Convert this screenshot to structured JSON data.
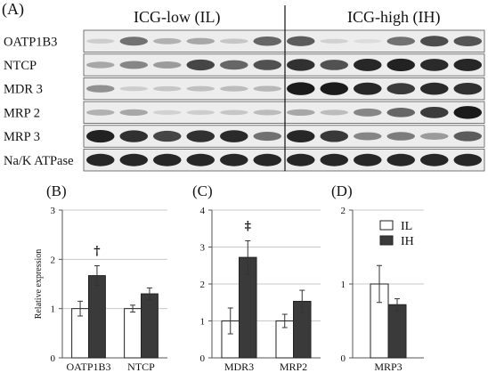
{
  "panels": {
    "a_label": "(A)",
    "group_low": "ICG-low (IL)",
    "group_high": "ICG-high (IH)",
    "blot_rows": [
      {
        "label": "OATP1B3",
        "band_intensity": [
          0.12,
          0.55,
          0.25,
          0.3,
          0.15,
          0.6,
          0.65,
          0.1,
          0.05,
          0.55,
          0.72,
          0.68
        ]
      },
      {
        "label": "NTCP",
        "band_intensity": [
          0.3,
          0.45,
          0.35,
          0.75,
          0.6,
          0.7,
          0.85,
          0.7,
          0.9,
          0.92,
          0.88,
          0.9
        ]
      },
      {
        "label": "MDR 3",
        "band_intensity": [
          0.4,
          0.12,
          0.15,
          0.18,
          0.2,
          0.22,
          0.95,
          0.95,
          0.9,
          0.8,
          0.88,
          0.85
        ]
      },
      {
        "label": "MRP 2",
        "band_intensity": [
          0.25,
          0.3,
          0.1,
          0.12,
          0.15,
          0.2,
          0.3,
          0.2,
          0.45,
          0.6,
          0.8,
          0.95
        ]
      },
      {
        "label": "MRP 3",
        "band_intensity": [
          0.92,
          0.85,
          0.75,
          0.85,
          0.88,
          0.55,
          0.9,
          0.82,
          0.45,
          0.5,
          0.35,
          0.65
        ]
      },
      {
        "label": "Na/K ATPase",
        "band_intensity": [
          0.9,
          0.9,
          0.9,
          0.9,
          0.9,
          0.9,
          0.9,
          0.9,
          0.9,
          0.9,
          0.9,
          0.9
        ]
      }
    ]
  },
  "colors": {
    "il": "#ffffff",
    "ih": "#3a3a3a",
    "stroke": "#222222",
    "grid": "#c8c8c8"
  },
  "chart_data": [
    {
      "type": "bar",
      "panel_label": "(B)",
      "ylabel": "Relative expression",
      "categories": [
        "OATP1B3",
        "NTCP"
      ],
      "ylim": [
        0,
        3
      ],
      "yticks": [
        "0",
        "1",
        "2",
        "3"
      ],
      "series": [
        {
          "name": "IL",
          "values": [
            1.0,
            1.0
          ],
          "errors": [
            0.15,
            0.07
          ]
        },
        {
          "name": "IH",
          "values": [
            1.67,
            1.3
          ],
          "errors": [
            0.2,
            0.12
          ]
        }
      ],
      "annotations": [
        {
          "category": "OATP1B3",
          "text": "†"
        }
      ]
    },
    {
      "type": "bar",
      "panel_label": "(C)",
      "categories": [
        "MDR3",
        "MRP2"
      ],
      "ylim": [
        0,
        4
      ],
      "yticks": [
        "0",
        "1",
        "2",
        "3",
        "4"
      ],
      "series": [
        {
          "name": "IL",
          "values": [
            1.0,
            1.0
          ],
          "errors": [
            0.35,
            0.18
          ]
        },
        {
          "name": "IH",
          "values": [
            2.72,
            1.53
          ],
          "errors": [
            0.45,
            0.3
          ]
        }
      ],
      "annotations": [
        {
          "category": "MDR3",
          "text": "‡"
        }
      ]
    },
    {
      "type": "bar",
      "panel_label": "(D)",
      "categories": [
        "MRP3"
      ],
      "ylim": [
        0,
        2
      ],
      "yticks": [
        "0",
        "1",
        "2"
      ],
      "series": [
        {
          "name": "IL",
          "values": [
            1.0
          ],
          "errors": [
            0.25
          ]
        },
        {
          "name": "IH",
          "values": [
            0.72
          ],
          "errors": [
            0.08
          ]
        }
      ],
      "legend": [
        "IL",
        "IH"
      ]
    }
  ]
}
